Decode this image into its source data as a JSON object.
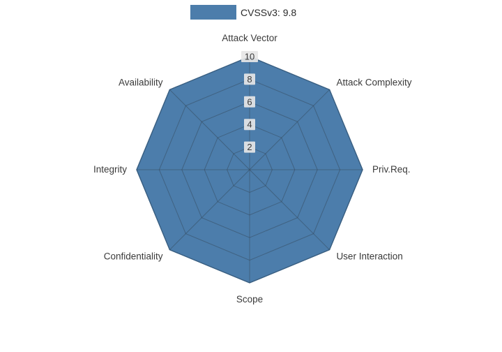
{
  "chart_data": {
    "type": "radar",
    "legend_label": "CVSSv3: 9.8",
    "score": 9.8,
    "categories": [
      "Attack Vector",
      "Attack Complexity",
      "Priv.Req.",
      "User Interaction",
      "Scope",
      "Confidentiality",
      "Integrity",
      "Availability"
    ],
    "values": [
      10,
      10,
      10,
      10,
      10,
      10,
      10,
      10
    ],
    "radial_ticks": [
      2,
      4,
      6,
      8,
      10
    ],
    "rmax": 10,
    "legend_position": "top-center",
    "grid": true,
    "colors": {
      "fill": "#4c7dab",
      "fill_edge": "#3f6e9a",
      "grid_line": "#33475a",
      "tick_box": "#e6e6e6",
      "tick_text": "#3a3a3a",
      "axis_label": "#3a3a3a",
      "background": "#ffffff"
    }
  }
}
